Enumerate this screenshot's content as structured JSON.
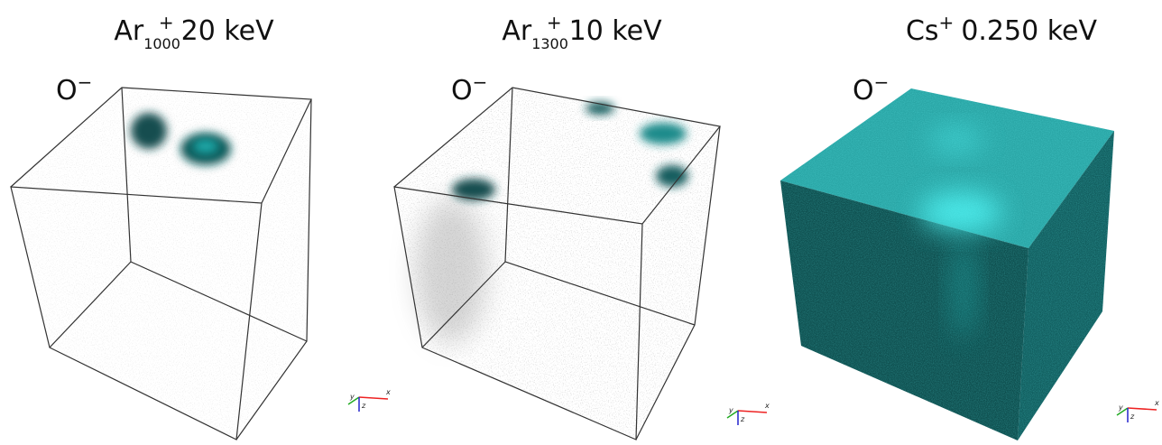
{
  "panels": [
    {
      "ion": "Ar",
      "subscript": "1000",
      "charge": "+",
      "energy": "20 keV",
      "species": "O",
      "species_charge": "−",
      "axes": [
        "x",
        "y",
        "z"
      ]
    },
    {
      "ion": "Ar",
      "subscript": "1300",
      "charge": "+",
      "energy": "10 keV",
      "species": "O",
      "species_charge": "−",
      "axes": [
        "x",
        "y",
        "z"
      ]
    },
    {
      "ion": "Cs",
      "charge": "+",
      "energy": "0.250 keV",
      "species": "O",
      "species_charge": "−",
      "axes": [
        "x",
        "y",
        "z"
      ]
    }
  ]
}
